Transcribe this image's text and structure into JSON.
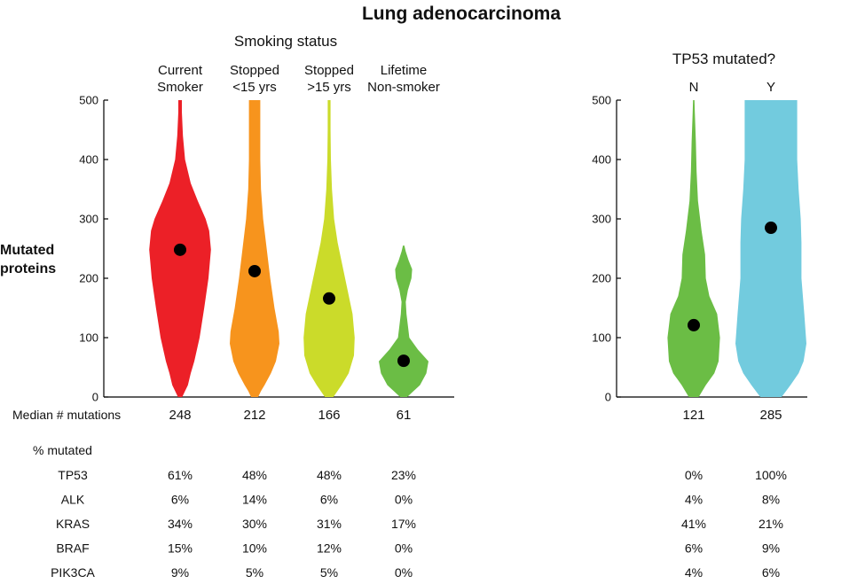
{
  "title": "Lung adenocarcinoma",
  "ylabel_line1": "Mutated",
  "ylabel_line2": "proteins",
  "median_label": "Median # mutations",
  "pct_header": "% mutated",
  "colors": {
    "current": "#ec2027",
    "stopped_lt15": "#f7941d",
    "stopped_gt15": "#cbdb2a",
    "never": "#6bbd45",
    "tp53_n": "#6bbd45",
    "tp53_y": "#72cbde",
    "dot": "#000000"
  },
  "chart_data": [
    {
      "type": "violin",
      "panel": "smoking",
      "title": "Smoking status",
      "ylabel": "Mutated proteins",
      "ylim": [
        0,
        500
      ],
      "yticks": [
        0,
        100,
        200,
        300,
        400,
        500
      ],
      "categories": [
        {
          "line1": "Current",
          "line2": "Smoker",
          "median": 248,
          "color_key": "current",
          "profile": [
            [
              0,
              0.06
            ],
            [
              10,
              0.14
            ],
            [
              20,
              0.22
            ],
            [
              40,
              0.3
            ],
            [
              60,
              0.4
            ],
            [
              100,
              0.55
            ],
            [
              150,
              0.68
            ],
            [
              200,
              0.8
            ],
            [
              248,
              0.87
            ],
            [
              280,
              0.82
            ],
            [
              300,
              0.72
            ],
            [
              330,
              0.5
            ],
            [
              360,
              0.3
            ],
            [
              400,
              0.14
            ],
            [
              440,
              0.08
            ],
            [
              480,
              0.05
            ],
            [
              500,
              0.05
            ]
          ]
        },
        {
          "line1": "Stopped",
          "line2": "<15 yrs",
          "median": 212,
          "color_key": "stopped_lt15",
          "profile": [
            [
              0,
              0.1
            ],
            [
              10,
              0.18
            ],
            [
              20,
              0.28
            ],
            [
              40,
              0.46
            ],
            [
              60,
              0.6
            ],
            [
              90,
              0.7
            ],
            [
              110,
              0.68
            ],
            [
              150,
              0.56
            ],
            [
              200,
              0.44
            ],
            [
              250,
              0.34
            ],
            [
              300,
              0.24
            ],
            [
              350,
              0.18
            ],
            [
              400,
              0.16
            ],
            [
              450,
              0.16
            ],
            [
              500,
              0.16
            ]
          ]
        },
        {
          "line1": "Stopped",
          "line2": ">15 yrs",
          "median": 166,
          "color_key": "stopped_gt15",
          "profile": [
            [
              0,
              0.12
            ],
            [
              20,
              0.35
            ],
            [
              40,
              0.55
            ],
            [
              70,
              0.7
            ],
            [
              100,
              0.72
            ],
            [
              140,
              0.66
            ],
            [
              180,
              0.52
            ],
            [
              220,
              0.38
            ],
            [
              260,
              0.24
            ],
            [
              300,
              0.14
            ],
            [
              350,
              0.08
            ],
            [
              400,
              0.05
            ],
            [
              450,
              0.04
            ],
            [
              500,
              0.04
            ]
          ]
        },
        {
          "line1": "Lifetime",
          "line2": "Non-smoker",
          "median": 61,
          "color_key": "never",
          "profile": [
            [
              0,
              0.1
            ],
            [
              10,
              0.28
            ],
            [
              20,
              0.46
            ],
            [
              40,
              0.64
            ],
            [
              60,
              0.7
            ],
            [
              80,
              0.4
            ],
            [
              100,
              0.16
            ],
            [
              120,
              0.12
            ],
            [
              140,
              0.08
            ],
            [
              160,
              0.06
            ],
            [
              180,
              0.12
            ],
            [
              200,
              0.22
            ],
            [
              215,
              0.24
            ],
            [
              230,
              0.14
            ],
            [
              245,
              0.06
            ],
            [
              255,
              0.02
            ]
          ]
        }
      ]
    },
    {
      "type": "violin",
      "panel": "tp53",
      "title": "TP53 mutated?",
      "ylim": [
        0,
        500
      ],
      "yticks": [
        0,
        100,
        200,
        300,
        400,
        500
      ],
      "categories": [
        {
          "line1": "N",
          "median": 121,
          "color_key": "tp53_n",
          "profile": [
            [
              0,
              0.14
            ],
            [
              20,
              0.34
            ],
            [
              40,
              0.58
            ],
            [
              60,
              0.7
            ],
            [
              100,
              0.74
            ],
            [
              140,
              0.66
            ],
            [
              170,
              0.44
            ],
            [
              200,
              0.34
            ],
            [
              240,
              0.32
            ],
            [
              280,
              0.22
            ],
            [
              330,
              0.12
            ],
            [
              380,
              0.08
            ],
            [
              430,
              0.06
            ],
            [
              480,
              0.03
            ],
            [
              500,
              0.02
            ]
          ]
        },
        {
          "line1": "Y",
          "median": 285,
          "color_key": "tp53_y",
          "profile": [
            [
              0,
              0.3
            ],
            [
              20,
              0.55
            ],
            [
              40,
              0.78
            ],
            [
              60,
              0.92
            ],
            [
              90,
              1.0
            ],
            [
              140,
              0.94
            ],
            [
              200,
              0.86
            ],
            [
              260,
              0.86
            ],
            [
              300,
              0.84
            ],
            [
              350,
              0.78
            ],
            [
              400,
              0.74
            ],
            [
              450,
              0.74
            ],
            [
              500,
              0.74
            ]
          ]
        }
      ]
    }
  ],
  "table": {
    "rows": [
      {
        "gene": "TP53",
        "values": [
          "61%",
          "48%",
          "48%",
          "23%"
        ],
        "tp53": [
          "0%",
          "100%"
        ]
      },
      {
        "gene": "ALK",
        "values": [
          "6%",
          "14%",
          "6%",
          "0%"
        ],
        "tp53": [
          "4%",
          "8%"
        ]
      },
      {
        "gene": "KRAS",
        "values": [
          "34%",
          "30%",
          "31%",
          "17%"
        ],
        "tp53": [
          "41%",
          "21%"
        ]
      },
      {
        "gene": "BRAF",
        "values": [
          "15%",
          "10%",
          "12%",
          "0%"
        ],
        "tp53": [
          "6%",
          "9%"
        ]
      },
      {
        "gene": "PIK3CA",
        "values": [
          "9%",
          "5%",
          "5%",
          "0%"
        ],
        "tp53": [
          "4%",
          "6%"
        ]
      }
    ]
  }
}
